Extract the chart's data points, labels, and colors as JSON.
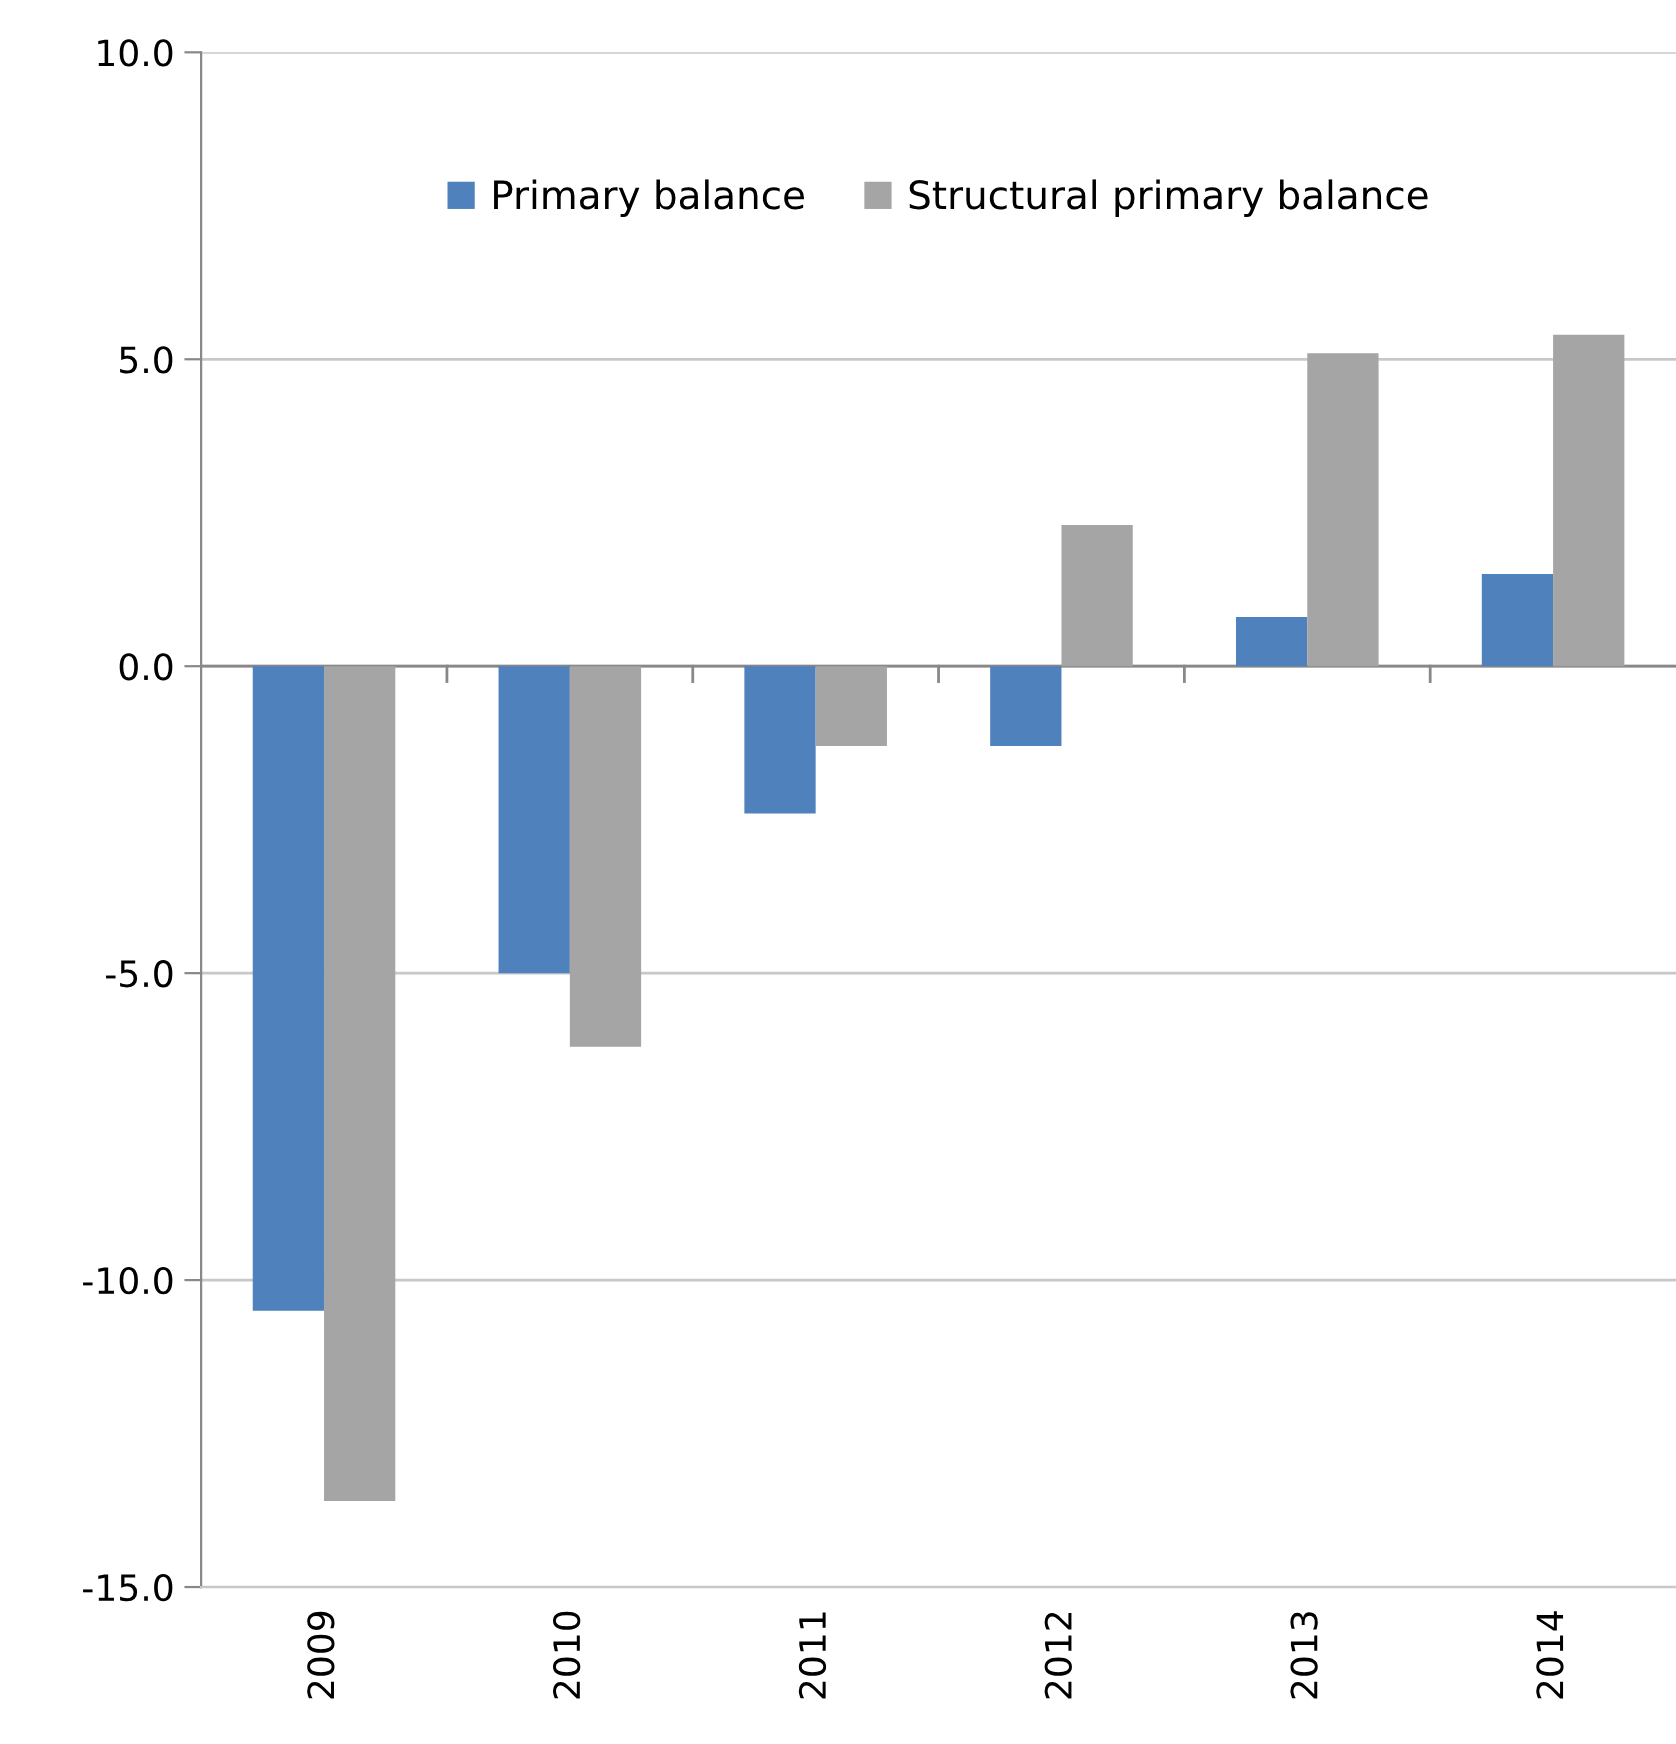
{
  "chart_data": {
    "type": "bar",
    "categories": [
      "2009",
      "2010",
      "2011",
      "2012",
      "2013",
      "2014"
    ],
    "series": [
      {
        "name": "Primary balance",
        "color": "#4f81bd",
        "values": [
          -10.5,
          -5.0,
          -2.4,
          -1.3,
          0.8,
          1.5
        ]
      },
      {
        "name": "Structural primary balance",
        "color": "#a5a5a5",
        "values": [
          -13.6,
          -6.2,
          -1.3,
          2.3,
          5.1,
          5.4
        ]
      }
    ],
    "ylim": [
      -15,
      10
    ],
    "yticks": [
      {
        "value": -15,
        "label": "-15.0"
      },
      {
        "value": -10,
        "label": "-10.0"
      },
      {
        "value": -5,
        "label": "-5.0"
      },
      {
        "value": 0,
        "label": "0.0"
      },
      {
        "value": 5,
        "label": "5.0"
      },
      {
        "value": 10,
        "label": "10.0"
      }
    ],
    "grid": "y",
    "legend": "top"
  }
}
